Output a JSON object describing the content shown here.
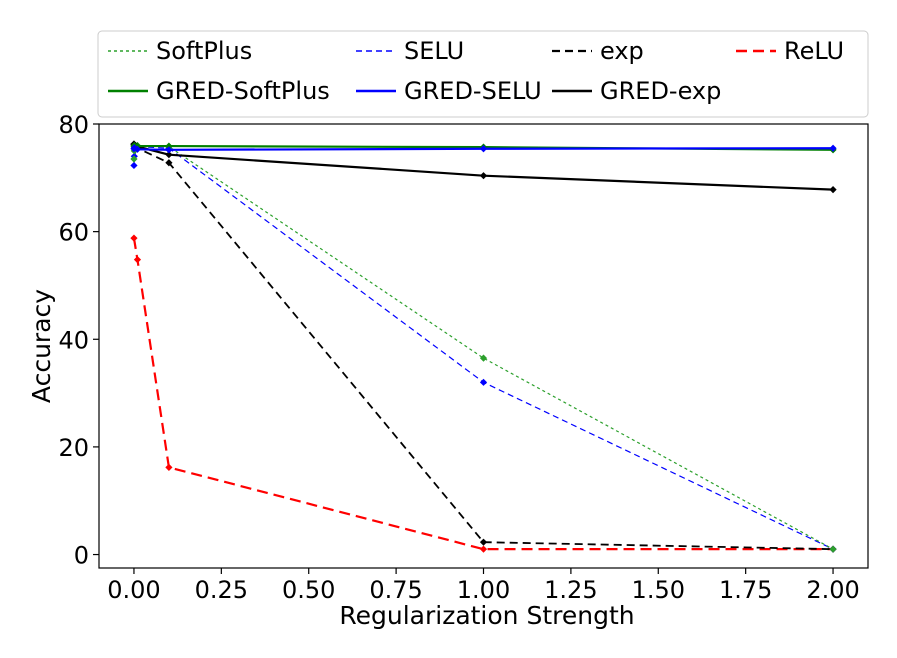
{
  "chart_data": {
    "type": "line",
    "xlabel": "Regularization Strength",
    "ylabel": "Accuracy",
    "xlim": [
      -0.1,
      2.1
    ],
    "ylim": [
      -2.5,
      80
    ],
    "xticks": [
      0.0,
      0.25,
      0.5,
      0.75,
      1.0,
      1.25,
      1.5,
      1.75,
      2.0
    ],
    "xtick_labels": [
      "0.00",
      "0.25",
      "0.50",
      "0.75",
      "1.00",
      "1.25",
      "1.50",
      "1.75",
      "2.00"
    ],
    "yticks": [
      0,
      20,
      40,
      60,
      80
    ],
    "ytick_labels": [
      "0",
      "20",
      "40",
      "60",
      "80"
    ],
    "grid": false,
    "legend_placement": "top",
    "series": [
      {
        "name": "SoftPlus",
        "color": "#2ca02c",
        "style": "dotted",
        "x": [
          0.0,
          0.001,
          0.01,
          0.1,
          1.0,
          2.0
        ],
        "y": [
          73.5,
          75.0,
          76.0,
          75.8,
          36.5,
          1.0
        ]
      },
      {
        "name": "SELU",
        "color": "#0000ff",
        "style": "dashed-fine",
        "x": [
          0.0,
          0.001,
          0.01,
          0.1,
          1.0,
          2.0
        ],
        "y": [
          72.3,
          74.0,
          75.8,
          75.5,
          32.0,
          1.0
        ]
      },
      {
        "name": "exp",
        "color": "#000000",
        "style": "dashed",
        "x": [
          0.0,
          0.001,
          0.01,
          0.1,
          1.0,
          2.0
        ],
        "y": [
          76.2,
          76.0,
          75.5,
          72.8,
          2.3,
          1.0
        ]
      },
      {
        "name": "ReLU",
        "color": "#ff0000",
        "style": "dashed-bold",
        "x": [
          0.0,
          0.01,
          0.1,
          1.0,
          2.0
        ],
        "y": [
          58.8,
          54.8,
          16.2,
          1.0,
          1.0
        ]
      },
      {
        "name": "GRED-SoftPlus",
        "color": "#008000",
        "style": "solid",
        "x": [
          0.0,
          0.001,
          0.01,
          0.1,
          1.0,
          2.0
        ],
        "y": [
          75.9,
          76.0,
          75.9,
          75.9,
          75.7,
          75.2
        ]
      },
      {
        "name": "GRED-SELU",
        "color": "#0000ff",
        "style": "solid",
        "x": [
          0.0,
          0.001,
          0.01,
          0.1,
          1.0,
          2.0
        ],
        "y": [
          75.4,
          75.6,
          75.3,
          75.2,
          75.4,
          75.5
        ]
      },
      {
        "name": "GRED-exp",
        "color": "#000000",
        "style": "solid",
        "x": [
          0.0,
          0.001,
          0.01,
          0.1,
          1.0,
          2.0
        ],
        "y": [
          76.3,
          76.1,
          75.8,
          74.3,
          70.4,
          67.8
        ]
      }
    ],
    "legend": {
      "rows": [
        [
          "SoftPlus",
          "SELU",
          "exp",
          "ReLU"
        ],
        [
          "GRED-SoftPlus",
          "GRED-SELU",
          "GRED-exp"
        ]
      ]
    }
  }
}
